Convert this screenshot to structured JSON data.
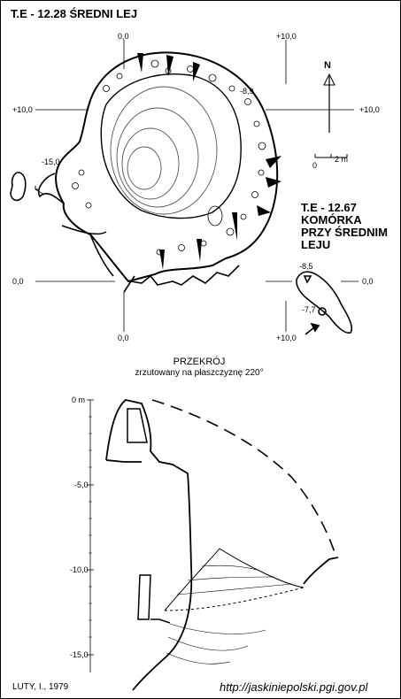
{
  "map": {
    "title": "T.E - 12.28  ŚREDNI LEJ",
    "subtitle_lines": [
      "T.E - 12.67",
      "KOMÓRKA",
      "PRZY ŚREDNIM",
      "LEJU"
    ],
    "north": "N",
    "scale": {
      "zero": "0",
      "value": "2 m"
    },
    "coords": {
      "top_left": "0,0",
      "top_right": "+10,0",
      "left_top": "+10,0",
      "right_top": "+10,0",
      "left_bottom": "0,0",
      "right_bottom": "0,0",
      "bottom_left": "0,0",
      "bottom_right": "+10,0"
    },
    "depths": {
      "main_top": "-8,9",
      "main_left": "-15,0",
      "cell_top": "-8,5",
      "cell_bottom": "-7,7"
    }
  },
  "section": {
    "title": "PRZEKRÓJ",
    "subtitle": "zrzutowany na płaszczyznę 220°",
    "depth_ticks": [
      "0 m",
      "-5,0",
      "-10,0",
      "-15,0"
    ]
  },
  "footer": {
    "credit": "LUTY, I., 1979",
    "url": "http://jaskiniepolski.pgi.gov.pl"
  }
}
